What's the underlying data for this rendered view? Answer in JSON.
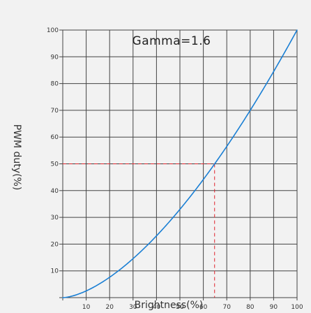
{
  "colors": {
    "background": "#f2f2f2",
    "grid": "#444444",
    "curve": "#1a7fd4",
    "reference": "#e0222b"
  },
  "chart_data": {
    "type": "line",
    "title": "",
    "annotation": "Gamma=1.6",
    "xlabel": "Brightness(%)",
    "ylabel": "PWM duty(%)",
    "xlim": [
      0,
      100
    ],
    "ylim": [
      0,
      100
    ],
    "x_ticks": [
      "10",
      "20",
      "30",
      "40",
      "50",
      "60",
      "70",
      "80",
      "90",
      "100"
    ],
    "y_ticks": [
      "10",
      "20",
      "30",
      "40",
      "50",
      "60",
      "70",
      "80",
      "90",
      "100"
    ],
    "grid": true,
    "gamma": 1.6,
    "series": [
      {
        "x": [
          0,
          10,
          20,
          30,
          40,
          50,
          60,
          70,
          80,
          90,
          100
        ],
        "values": [
          0,
          2.5,
          7.6,
          14.6,
          23.1,
          33.0,
          44.2,
          56.5,
          70.0,
          84.5,
          100
        ]
      }
    ],
    "reference_point": {
      "x": 64.8,
      "y": 50
    }
  }
}
